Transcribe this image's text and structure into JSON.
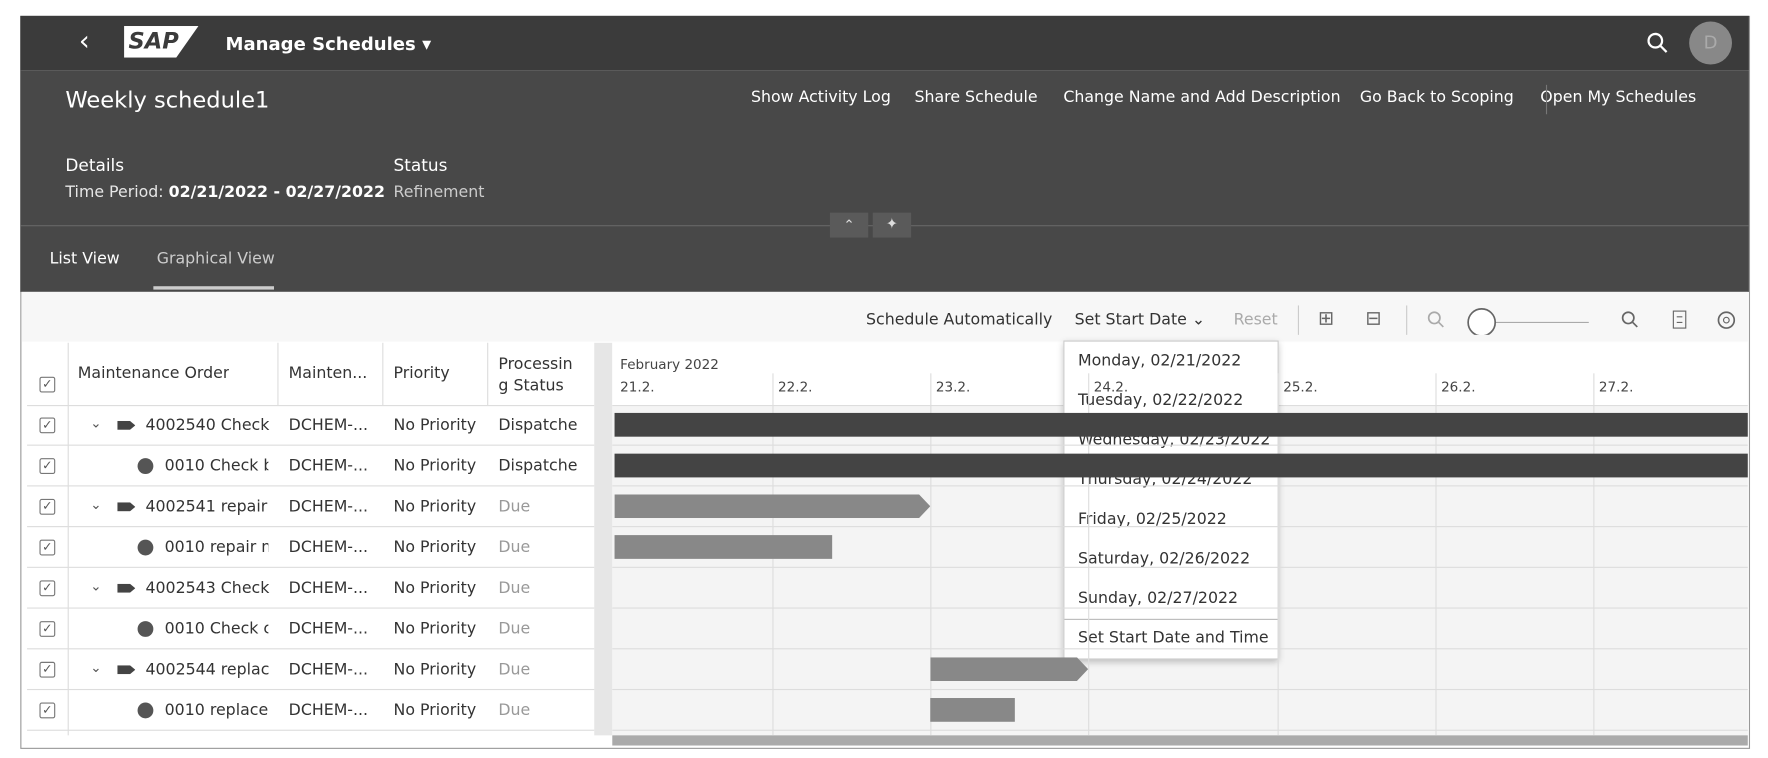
{
  "shell": {
    "logo": "SAP",
    "app_title": "Manage Schedules",
    "avatar": "D"
  },
  "object_header": {
    "title": "Weekly schedule1",
    "actions": [
      "Show Activity Log",
      "Share Schedule",
      "Change Name and Add Description",
      "Go Back to Scoping",
      "Open My Schedules"
    ],
    "details_label": "Details",
    "time_period_label": "Time Period:",
    "time_period": "02/21/2022 - 02/27/2022",
    "status_label": "Status",
    "status": "Refinement"
  },
  "tabs": [
    "List View",
    "Graphical View"
  ],
  "toolbar": {
    "schedule_automatically": "Schedule Automatically",
    "set_start_date": "Set Start Date",
    "reset": "Reset"
  },
  "table": {
    "columns": [
      "Maintenance Order",
      "Mainten...",
      "Priority",
      "Processing Status"
    ],
    "rows": [
      [
        "4002540 Check",
        "DCHEM-...",
        "No Priority",
        "Dispatche"
      ],
      [
        "0010 Check b",
        "DCHEM-...",
        "No Priority",
        "Dispatche"
      ],
      [
        "4002541 repair",
        "DCHEM-...",
        "No Priority",
        "Due"
      ],
      [
        "0010 repair m",
        "DCHEM-...",
        "No Priority",
        "Due"
      ],
      [
        "4002543 Check",
        "DCHEM-...",
        "No Priority",
        "Due"
      ],
      [
        "0010 Check c",
        "DCHEM-...",
        "No Priority",
        "Due"
      ],
      [
        "4002544 replac",
        "DCHEM-...",
        "No Priority",
        "Due"
      ],
      [
        "0010 replace",
        "DCHEM-...",
        "No Priority",
        "Due"
      ]
    ]
  },
  "gantt": {
    "month": "February 2022",
    "days": [
      "21.2.",
      "22.2.",
      "23.2.",
      "24.2.",
      "25.2.",
      "26.2.",
      "27.2."
    ]
  },
  "dropdown": {
    "options": [
      "Monday, 02/21/2022",
      "Tuesday, 02/22/2022",
      "Wednesday, 02/23/2022",
      "Thursday, 02/24/2022",
      "Friday, 02/25/2022",
      "Saturday, 02/26/2022",
      "Sunday, 02/27/2022"
    ],
    "footer": "Set Start Date and Time"
  }
}
